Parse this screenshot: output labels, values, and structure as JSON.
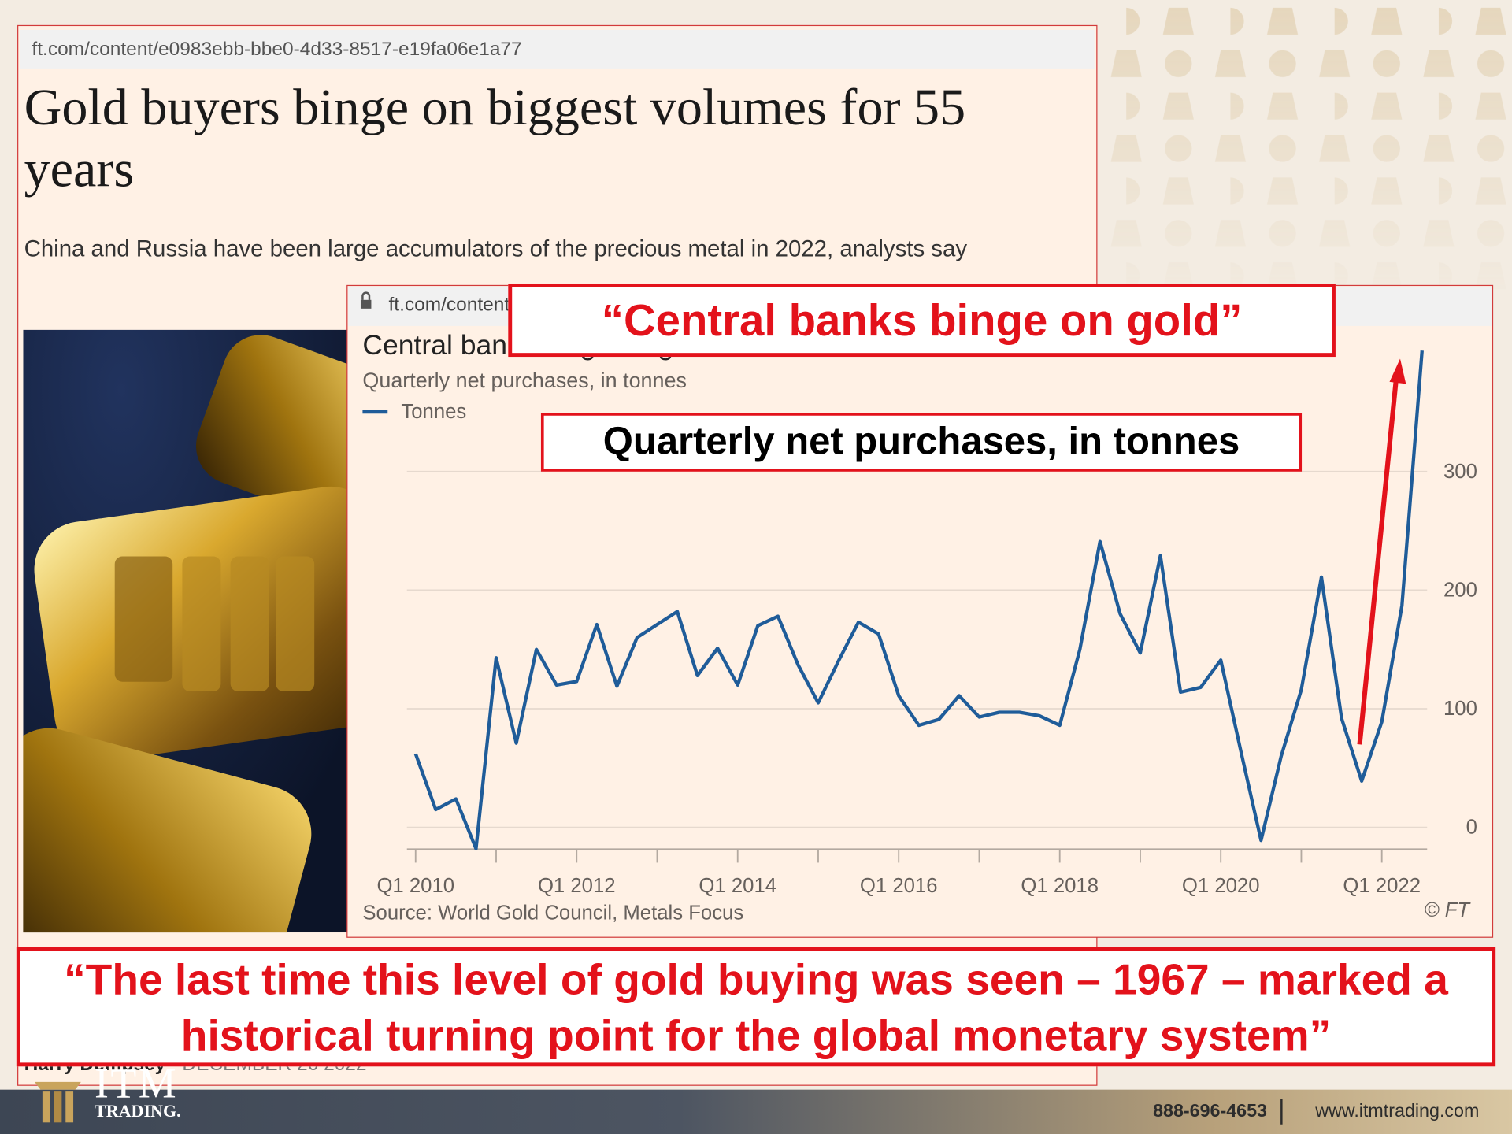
{
  "article": {
    "url": "ft.com/content/e0983ebb-bbe0-4d33-8517-e19fa06e1a77",
    "headline": "Gold buyers binge on biggest volumes for 55 years",
    "subheadline": "China and Russia have been large accumulators of the precious metal in 2022, analysts say",
    "byline": "Harry Dempsey",
    "date": "DECEMBER 26 2022"
  },
  "chart_panel": {
    "url": "ft.com/content"
  },
  "chart_data": {
    "type": "line",
    "title": "Central banks binge on gold",
    "subtitle": "Quarterly net purchases, in tonnes",
    "categories": [
      "Q1 2010",
      null,
      null,
      null,
      null,
      null,
      null,
      null,
      "Q1 2012",
      null,
      null,
      null,
      null,
      null,
      null,
      null,
      "Q1 2014",
      null,
      null,
      null,
      null,
      null,
      null,
      null,
      "Q1 2016",
      null,
      null,
      null,
      null,
      null,
      null,
      null,
      "Q1 2018",
      null,
      null,
      null,
      null,
      null,
      null,
      null,
      "Q1 2020",
      null,
      null,
      null,
      null,
      null,
      null,
      null,
      "Q1 2022",
      null,
      null
    ],
    "series": [
      {
        "name": "Tonnes",
        "color": "#1f5c99",
        "values": [
          62,
          15,
          24,
          -18,
          143,
          71,
          150,
          120,
          123,
          171,
          119,
          160,
          171,
          182,
          128,
          151,
          120,
          170,
          178,
          137,
          105,
          140,
          173,
          163,
          111,
          86,
          91,
          111,
          93,
          97,
          97,
          94,
          86,
          150,
          241,
          180,
          147,
          229,
          114,
          118,
          141,
          64,
          -11,
          60,
          116,
          211,
          92,
          39,
          89,
          187,
          402
        ]
      }
    ],
    "ylim": [
      -20,
      420
    ],
    "yticks": [
      0,
      100,
      200,
      300
    ],
    "grid": true,
    "source": "Source: World Gold Council, Metals Focus",
    "credit": "© FT"
  },
  "annotations": {
    "title_callout": "“Central banks binge on gold”",
    "subtitle_callout": "Quarterly net purchases, in tonnes",
    "quote": "“The last time this level of gold buying was seen – 1967 – marked a historical turning point for the global monetary system”"
  },
  "footer": {
    "logo": "ITM",
    "logo_sub": "TRADING.",
    "phone": "888-696-4653",
    "website": "www.itmtrading.com"
  }
}
